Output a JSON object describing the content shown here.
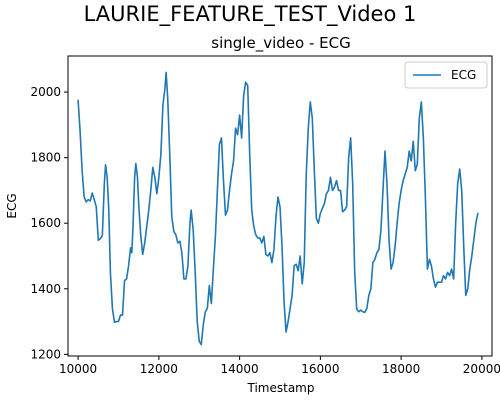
{
  "figure": {
    "suptitle": "LAURIE_FEATURE_TEST_Video 1"
  },
  "chart_data": {
    "type": "line",
    "title": "single_video - ECG",
    "xlabel": "Timestamp",
    "ylabel": "ECG",
    "xlim": [
      9750,
      20250
    ],
    "ylim": [
      1195,
      2110
    ],
    "xticks": [
      10000,
      12000,
      14000,
      16000,
      18000,
      20000
    ],
    "yticks": [
      1200,
      1400,
      1600,
      1800,
      2000
    ],
    "grid": false,
    "legend_position": "upper right",
    "series": [
      {
        "name": "ECG",
        "color": "#1f77b4",
        "points": [
          [
            10000,
            1975
          ],
          [
            10050,
            1880
          ],
          [
            10100,
            1760
          ],
          [
            10150,
            1680
          ],
          [
            10200,
            1665
          ],
          [
            10250,
            1672
          ],
          [
            10300,
            1668
          ],
          [
            10350,
            1692
          ],
          [
            10400,
            1672
          ],
          [
            10450,
            1650
          ],
          [
            10500,
            1548
          ],
          [
            10550,
            1553
          ],
          [
            10600,
            1562
          ],
          [
            10650,
            1720
          ],
          [
            10680,
            1778
          ],
          [
            10720,
            1740
          ],
          [
            10760,
            1640
          ],
          [
            10800,
            1450
          ],
          [
            10850,
            1340
          ],
          [
            10900,
            1298
          ],
          [
            10950,
            1300
          ],
          [
            11000,
            1300
          ],
          [
            11050,
            1320
          ],
          [
            11100,
            1320
          ],
          [
            11150,
            1425
          ],
          [
            11200,
            1430
          ],
          [
            11250,
            1470
          ],
          [
            11300,
            1525
          ],
          [
            11330,
            1510
          ],
          [
            11360,
            1590
          ],
          [
            11400,
            1740
          ],
          [
            11430,
            1782
          ],
          [
            11470,
            1740
          ],
          [
            11500,
            1660
          ],
          [
            11550,
            1565
          ],
          [
            11600,
            1505
          ],
          [
            11650,
            1540
          ],
          [
            11700,
            1590
          ],
          [
            11750,
            1640
          ],
          [
            11800,
            1700
          ],
          [
            11850,
            1770
          ],
          [
            11900,
            1740
          ],
          [
            11950,
            1690
          ],
          [
            12000,
            1740
          ],
          [
            12050,
            1810
          ],
          [
            12100,
            1960
          ],
          [
            12150,
            2010
          ],
          [
            12180,
            2060
          ],
          [
            12220,
            1980
          ],
          [
            12270,
            1810
          ],
          [
            12320,
            1620
          ],
          [
            12370,
            1575
          ],
          [
            12420,
            1565
          ],
          [
            12470,
            1540
          ],
          [
            12520,
            1545
          ],
          [
            12570,
            1510
          ],
          [
            12620,
            1430
          ],
          [
            12670,
            1430
          ],
          [
            12720,
            1470
          ],
          [
            12770,
            1600
          ],
          [
            12800,
            1640
          ],
          [
            12850,
            1580
          ],
          [
            12900,
            1450
          ],
          [
            12950,
            1300
          ],
          [
            13000,
            1240
          ],
          [
            13050,
            1230
          ],
          [
            13100,
            1290
          ],
          [
            13150,
            1330
          ],
          [
            13200,
            1340
          ],
          [
            13250,
            1410
          ],
          [
            13300,
            1355
          ],
          [
            13350,
            1460
          ],
          [
            13400,
            1560
          ],
          [
            13450,
            1700
          ],
          [
            13500,
            1840
          ],
          [
            13550,
            1860
          ],
          [
            13600,
            1730
          ],
          [
            13650,
            1625
          ],
          [
            13700,
            1640
          ],
          [
            13750,
            1700
          ],
          [
            13800,
            1750
          ],
          [
            13850,
            1790
          ],
          [
            13900,
            1890
          ],
          [
            13950,
            1870
          ],
          [
            14000,
            1930
          ],
          [
            14050,
            1860
          ],
          [
            14100,
            1990
          ],
          [
            14150,
            2030
          ],
          [
            14200,
            2020
          ],
          [
            14250,
            1810
          ],
          [
            14300,
            1640
          ],
          [
            14350,
            1590
          ],
          [
            14400,
            1565
          ],
          [
            14450,
            1555
          ],
          [
            14500,
            1555
          ],
          [
            14550,
            1540
          ],
          [
            14600,
            1560
          ],
          [
            14650,
            1505
          ],
          [
            14700,
            1500
          ],
          [
            14750,
            1510
          ],
          [
            14800,
            1480
          ],
          [
            14850,
            1520
          ],
          [
            14900,
            1620
          ],
          [
            14950,
            1680
          ],
          [
            15000,
            1650
          ],
          [
            15050,
            1530
          ],
          [
            15100,
            1360
          ],
          [
            15150,
            1268
          ],
          [
            15200,
            1300
          ],
          [
            15250,
            1340
          ],
          [
            15300,
            1380
          ],
          [
            15350,
            1470
          ],
          [
            15400,
            1475
          ],
          [
            15450,
            1455
          ],
          [
            15500,
            1500
          ],
          [
            15550,
            1415
          ],
          [
            15600,
            1480
          ],
          [
            15650,
            1750
          ],
          [
            15700,
            1890
          ],
          [
            15750,
            1970
          ],
          [
            15800,
            1920
          ],
          [
            15850,
            1760
          ],
          [
            15900,
            1615
          ],
          [
            15950,
            1600
          ],
          [
            16000,
            1630
          ],
          [
            16050,
            1645
          ],
          [
            16100,
            1660
          ],
          [
            16150,
            1690
          ],
          [
            16200,
            1700
          ],
          [
            16250,
            1740
          ],
          [
            16300,
            1700
          ],
          [
            16350,
            1710
          ],
          [
            16400,
            1730
          ],
          [
            16450,
            1700
          ],
          [
            16500,
            1700
          ],
          [
            16550,
            1635
          ],
          [
            16600,
            1640
          ],
          [
            16650,
            1650
          ],
          [
            16700,
            1800
          ],
          [
            16750,
            1860
          ],
          [
            16800,
            1720
          ],
          [
            16850,
            1450
          ],
          [
            16900,
            1338
          ],
          [
            16950,
            1330
          ],
          [
            17000,
            1335
          ],
          [
            17050,
            1330
          ],
          [
            17100,
            1328
          ],
          [
            17150,
            1340
          ],
          [
            17200,
            1380
          ],
          [
            17250,
            1400
          ],
          [
            17300,
            1480
          ],
          [
            17350,
            1490
          ],
          [
            17400,
            1510
          ],
          [
            17450,
            1520
          ],
          [
            17500,
            1580
          ],
          [
            17550,
            1700
          ],
          [
            17600,
            1820
          ],
          [
            17650,
            1720
          ],
          [
            17700,
            1550
          ],
          [
            17750,
            1460
          ],
          [
            17800,
            1480
          ],
          [
            17850,
            1530
          ],
          [
            17900,
            1600
          ],
          [
            17950,
            1660
          ],
          [
            18000,
            1700
          ],
          [
            18050,
            1730
          ],
          [
            18100,
            1750
          ],
          [
            18150,
            1770
          ],
          [
            18200,
            1820
          ],
          [
            18250,
            1790
          ],
          [
            18300,
            1850
          ],
          [
            18350,
            1760
          ],
          [
            18400,
            1780
          ],
          [
            18450,
            1920
          ],
          [
            18500,
            1970
          ],
          [
            18550,
            1860
          ],
          [
            18600,
            1680
          ],
          [
            18650,
            1460
          ],
          [
            18700,
            1490
          ],
          [
            18750,
            1470
          ],
          [
            18800,
            1430
          ],
          [
            18850,
            1405
          ],
          [
            18900,
            1420
          ],
          [
            18950,
            1420
          ],
          [
            19000,
            1420
          ],
          [
            19050,
            1440
          ],
          [
            19100,
            1430
          ],
          [
            19150,
            1450
          ],
          [
            19200,
            1440
          ],
          [
            19250,
            1460
          ],
          [
            19300,
            1430
          ],
          [
            19350,
            1600
          ],
          [
            19400,
            1720
          ],
          [
            19450,
            1765
          ],
          [
            19500,
            1700
          ],
          [
            19550,
            1530
          ],
          [
            19600,
            1380
          ],
          [
            19650,
            1400
          ],
          [
            19700,
            1460
          ],
          [
            19750,
            1500
          ],
          [
            19800,
            1550
          ],
          [
            19850,
            1600
          ],
          [
            19900,
            1630
          ]
        ]
      }
    ]
  }
}
